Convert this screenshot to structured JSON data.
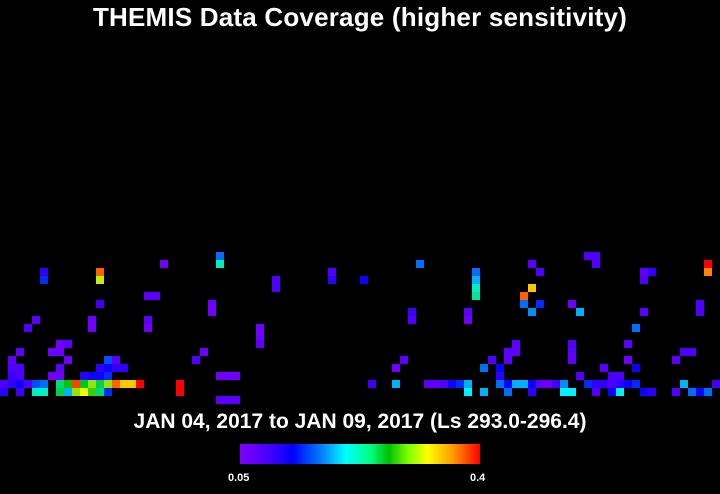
{
  "title": "THEMIS Data Coverage (higher sensitivity)",
  "date_range": "JAN 04, 2017 to JAN 09, 2017 (Ls 293.0-296.4)",
  "colorbar": {
    "min_label": "0.05",
    "max_label": "0.4",
    "colors": [
      "#8000ff",
      "#0000ff",
      "#00ffff",
      "#00c000",
      "#ffff00",
      "#ff0000"
    ]
  },
  "chart_data": {
    "type": "heatmap",
    "title": "THEMIS Data Coverage (higher sensitivity)",
    "value_range": [
      0.05,
      0.4
    ],
    "grid": false,
    "cells": [
      {
        "col": 0,
        "row": 17,
        "v": 0.08
      },
      {
        "col": 1,
        "row": 17,
        "v": 0.1
      },
      {
        "col": 2,
        "row": 17,
        "v": 0.12
      },
      {
        "col": 3,
        "row": 17,
        "v": 0.08
      },
      {
        "col": 4,
        "row": 17,
        "v": 0.15
      },
      {
        "col": 5,
        "row": 17,
        "v": 0.16
      },
      {
        "col": 7,
        "row": 17,
        "v": 0.24
      },
      {
        "col": 8,
        "row": 17,
        "v": 0.27
      },
      {
        "col": 9,
        "row": 17,
        "v": 0.38
      },
      {
        "col": 10,
        "row": 17,
        "v": 0.26
      },
      {
        "col": 11,
        "row": 17,
        "v": 0.3
      },
      {
        "col": 12,
        "row": 17,
        "v": 0.25
      },
      {
        "col": 13,
        "row": 17,
        "v": 0.3
      },
      {
        "col": 14,
        "row": 17,
        "v": 0.37
      },
      {
        "col": 15,
        "row": 17,
        "v": 0.34
      },
      {
        "col": 16,
        "row": 17,
        "v": 0.34
      },
      {
        "col": 17,
        "row": 17,
        "v": 0.4
      },
      {
        "col": 0,
        "row": 18,
        "v": 0.1
      },
      {
        "col": 2,
        "row": 18,
        "v": 0.09
      },
      {
        "col": 4,
        "row": 18,
        "v": 0.22
      },
      {
        "col": 5,
        "row": 18,
        "v": 0.22
      },
      {
        "col": 7,
        "row": 18,
        "v": 0.25
      },
      {
        "col": 8,
        "row": 18,
        "v": 0.18
      },
      {
        "col": 9,
        "row": 18,
        "v": 0.3
      },
      {
        "col": 10,
        "row": 18,
        "v": 0.32
      },
      {
        "col": 11,
        "row": 18,
        "v": 0.28
      },
      {
        "col": 12,
        "row": 18,
        "v": 0.24
      },
      {
        "col": 13,
        "row": 18,
        "v": 0.14
      },
      {
        "col": 22,
        "row": 18,
        "v": 0.4
      },
      {
        "col": 1,
        "row": 16,
        "v": 0.09
      },
      {
        "col": 2,
        "row": 16,
        "v": 0.08
      },
      {
        "col": 6,
        "row": 16,
        "v": 0.06
      },
      {
        "col": 7,
        "row": 16,
        "v": 0.06
      },
      {
        "col": 10,
        "row": 16,
        "v": 0.1
      },
      {
        "col": 11,
        "row": 16,
        "v": 0.12
      },
      {
        "col": 12,
        "row": 16,
        "v": 0.12
      },
      {
        "col": 13,
        "row": 16,
        "v": 0.14
      },
      {
        "col": 27,
        "row": 16,
        "v": 0.06
      },
      {
        "col": 28,
        "row": 16,
        "v": 0.06
      },
      {
        "col": 29,
        "row": 16,
        "v": 0.06
      },
      {
        "col": 1,
        "row": 15,
        "v": 0.08
      },
      {
        "col": 2,
        "row": 15,
        "v": 0.08
      },
      {
        "col": 7,
        "row": 15,
        "v": 0.07
      },
      {
        "col": 12,
        "row": 15,
        "v": 0.1
      },
      {
        "col": 13,
        "row": 15,
        "v": 0.12
      },
      {
        "col": 1,
        "row": 14,
        "v": 0.07
      },
      {
        "col": 8,
        "row": 14,
        "v": 0.06
      },
      {
        "col": 14,
        "row": 14,
        "v": 0.07
      },
      {
        "col": 13,
        "row": 14,
        "v": 0.15
      },
      {
        "col": 14,
        "row": 15,
        "v": 0.1
      },
      {
        "col": 15,
        "row": 15,
        "v": 0.1
      },
      {
        "col": 2,
        "row": 13,
        "v": 0.07
      },
      {
        "col": 6,
        "row": 13,
        "v": 0.06
      },
      {
        "col": 7,
        "row": 13,
        "v": 0.06
      },
      {
        "col": 8,
        "row": 12,
        "v": 0.07
      },
      {
        "col": 7,
        "row": 12,
        "v": 0.06
      },
      {
        "col": 11,
        "row": 10,
        "v": 0.06
      },
      {
        "col": 11,
        "row": 9,
        "v": 0.06
      },
      {
        "col": 4,
        "row": 9,
        "v": 0.07
      },
      {
        "col": 12,
        "row": 7,
        "v": 0.09
      },
      {
        "col": 5,
        "row": 3,
        "v": 0.1
      },
      {
        "col": 5,
        "row": 4,
        "v": 0.14
      },
      {
        "col": 12,
        "row": 3,
        "v": 0.37
      },
      {
        "col": 12,
        "row": 4,
        "v": 0.31
      },
      {
        "col": 20,
        "row": 2,
        "v": 0.06
      },
      {
        "col": 27,
        "row": 1,
        "v": 0.16
      },
      {
        "col": 27,
        "row": 2,
        "v": 0.22
      },
      {
        "col": 26,
        "row": 8,
        "v": 0.06
      },
      {
        "col": 26,
        "row": 7,
        "v": 0.06
      },
      {
        "col": 18,
        "row": 10,
        "v": 0.06
      },
      {
        "col": 18,
        "row": 9,
        "v": 0.07
      },
      {
        "col": 32,
        "row": 10,
        "v": 0.06
      },
      {
        "col": 32,
        "row": 11,
        "v": 0.06
      },
      {
        "col": 32,
        "row": 12,
        "v": 0.07
      },
      {
        "col": 25,
        "row": 13,
        "v": 0.06
      },
      {
        "col": 24,
        "row": 14,
        "v": 0.08
      },
      {
        "col": 22,
        "row": 17,
        "v": 0.42
      },
      {
        "col": 34,
        "row": 4,
        "v": 0.08
      },
      {
        "col": 34,
        "row": 5,
        "v": 0.08
      },
      {
        "col": 41,
        "row": 3,
        "v": 0.08
      },
      {
        "col": 45,
        "row": 4,
        "v": 0.12
      },
      {
        "col": 41,
        "row": 4,
        "v": 0.1
      },
      {
        "col": 52,
        "row": 2,
        "v": 0.16
      },
      {
        "col": 51,
        "row": 8,
        "v": 0.09
      },
      {
        "col": 51,
        "row": 9,
        "v": 0.08
      },
      {
        "col": 50,
        "row": 14,
        "v": 0.07
      },
      {
        "col": 49,
        "row": 15,
        "v": 0.06
      },
      {
        "col": 46,
        "row": 17,
        "v": 0.09
      },
      {
        "col": 49,
        "row": 17,
        "v": 0.18
      },
      {
        "col": 53,
        "row": 17,
        "v": 0.07
      },
      {
        "col": 54,
        "row": 17,
        "v": 0.07
      },
      {
        "col": 55,
        "row": 17,
        "v": 0.08
      },
      {
        "col": 56,
        "row": 17,
        "v": 0.12
      },
      {
        "col": 57,
        "row": 17,
        "v": 0.14
      },
      {
        "col": 58,
        "row": 17,
        "v": 0.18
      },
      {
        "col": 58,
        "row": 18,
        "v": 0.2
      },
      {
        "col": 59,
        "row": 6,
        "v": 0.23
      },
      {
        "col": 59,
        "row": 5,
        "v": 0.22
      },
      {
        "col": 59,
        "row": 4,
        "v": 0.18
      },
      {
        "col": 59,
        "row": 3,
        "v": 0.16
      },
      {
        "col": 58,
        "row": 8,
        "v": 0.07
      },
      {
        "col": 58,
        "row": 9,
        "v": 0.06
      },
      {
        "col": 60,
        "row": 15,
        "v": 0.16
      },
      {
        "col": 61,
        "row": 14,
        "v": 0.08
      },
      {
        "col": 62,
        "row": 15,
        "v": 0.12
      },
      {
        "col": 62,
        "row": 16,
        "v": 0.1
      },
      {
        "col": 62,
        "row": 17,
        "v": 0.16
      },
      {
        "col": 63,
        "row": 13,
        "v": 0.07
      },
      {
        "col": 63,
        "row": 14,
        "v": 0.07
      },
      {
        "col": 64,
        "row": 12,
        "v": 0.07
      },
      {
        "col": 64,
        "row": 13,
        "v": 0.07
      },
      {
        "col": 63,
        "row": 17,
        "v": 0.12
      },
      {
        "col": 64,
        "row": 17,
        "v": 0.18
      },
      {
        "col": 65,
        "row": 17,
        "v": 0.18
      },
      {
        "col": 66,
        "row": 17,
        "v": 0.12
      },
      {
        "col": 66,
        "row": 18,
        "v": 0.1
      },
      {
        "col": 67,
        "row": 17,
        "v": 0.07
      },
      {
        "col": 68,
        "row": 17,
        "v": 0.06
      },
      {
        "col": 69,
        "row": 17,
        "v": 0.09
      },
      {
        "col": 70,
        "row": 17,
        "v": 0.17
      },
      {
        "col": 66,
        "row": 2,
        "v": 0.07
      },
      {
        "col": 67,
        "row": 3,
        "v": 0.08
      },
      {
        "col": 65,
        "row": 6,
        "v": 0.37
      },
      {
        "col": 66,
        "row": 5,
        "v": 0.34
      },
      {
        "col": 65,
        "row": 7,
        "v": 0.16
      },
      {
        "col": 66,
        "row": 8,
        "v": 0.17
      },
      {
        "col": 67,
        "row": 7,
        "v": 0.14
      },
      {
        "col": 71,
        "row": 7,
        "v": 0.06
      },
      {
        "col": 71,
        "row": 12,
        "v": 0.08
      },
      {
        "col": 71,
        "row": 13,
        "v": 0.07
      },
      {
        "col": 71,
        "row": 14,
        "v": 0.07
      },
      {
        "col": 72,
        "row": 16,
        "v": 0.08
      },
      {
        "col": 73,
        "row": 17,
        "v": 0.14
      },
      {
        "col": 74,
        "row": 17,
        "v": 0.1
      },
      {
        "col": 75,
        "row": 17,
        "v": 0.1
      },
      {
        "col": 76,
        "row": 17,
        "v": 0.08
      },
      {
        "col": 77,
        "row": 17,
        "v": 0.1
      },
      {
        "col": 78,
        "row": 17,
        "v": 0.12
      },
      {
        "col": 79,
        "row": 17,
        "v": 0.14
      },
      {
        "col": 75,
        "row": 15,
        "v": 0.07
      },
      {
        "col": 76,
        "row": 16,
        "v": 0.08
      },
      {
        "col": 77,
        "row": 16,
        "v": 0.08
      },
      {
        "col": 78,
        "row": 14,
        "v": 0.06
      },
      {
        "col": 79,
        "row": 15,
        "v": 0.12
      },
      {
        "col": 78,
        "row": 12,
        "v": 0.07
      },
      {
        "col": 79,
        "row": 10,
        "v": 0.16
      },
      {
        "col": 80,
        "row": 8,
        "v": 0.07
      },
      {
        "col": 80,
        "row": 4,
        "v": 0.08
      },
      {
        "col": 80,
        "row": 3,
        "v": 0.07
      },
      {
        "col": 81,
        "row": 3,
        "v": 0.1
      },
      {
        "col": 72,
        "row": 8,
        "v": 0.18
      },
      {
        "col": 73,
        "row": 1,
        "v": 0.08
      },
      {
        "col": 74,
        "row": 1,
        "v": 0.08
      },
      {
        "col": 74,
        "row": 2,
        "v": 0.08
      },
      {
        "col": 84,
        "row": 14,
        "v": 0.07
      },
      {
        "col": 85,
        "row": 13,
        "v": 0.08
      },
      {
        "col": 86,
        "row": 13,
        "v": 0.08
      },
      {
        "col": 85,
        "row": 17,
        "v": 0.18
      },
      {
        "col": 86,
        "row": 18,
        "v": 0.16
      },
      {
        "col": 87,
        "row": 18,
        "v": 0.12
      },
      {
        "col": 88,
        "row": 18,
        "v": 0.16
      },
      {
        "col": 87,
        "row": 7,
        "v": 0.08
      },
      {
        "col": 87,
        "row": 8,
        "v": 0.08
      },
      {
        "col": 88,
        "row": 3,
        "v": 0.36
      },
      {
        "col": 88,
        "row": 2,
        "v": 0.4
      },
      {
        "col": 89,
        "row": 17,
        "v": 0.09
      },
      {
        "col": 84,
        "row": 18,
        "v": 0.08
      },
      {
        "col": 81,
        "row": 18,
        "v": 0.1
      },
      {
        "col": 80,
        "row": 18,
        "v": 0.12
      },
      {
        "col": 77,
        "row": 18,
        "v": 0.2
      },
      {
        "col": 76,
        "row": 18,
        "v": 0.12
      },
      {
        "col": 74,
        "row": 18,
        "v": 0.08
      },
      {
        "col": 71,
        "row": 18,
        "v": 0.2
      },
      {
        "col": 70,
        "row": 18,
        "v": 0.2
      },
      {
        "col": 63,
        "row": 18,
        "v": 0.16
      },
      {
        "col": 60,
        "row": 18,
        "v": 0.18
      },
      {
        "col": 27,
        "row": 19,
        "v": 0.07
      },
      {
        "col": 28,
        "row": 19,
        "v": 0.07
      },
      {
        "col": 29,
        "row": 19,
        "v": 0.07
      },
      {
        "col": 18,
        "row": 6,
        "v": 0.07
      },
      {
        "col": 19,
        "row": 6,
        "v": 0.07
      },
      {
        "col": 3,
        "row": 10,
        "v": 0.08
      },
      {
        "col": 0,
        "row": 18,
        "v": 0.1
      }
    ]
  }
}
